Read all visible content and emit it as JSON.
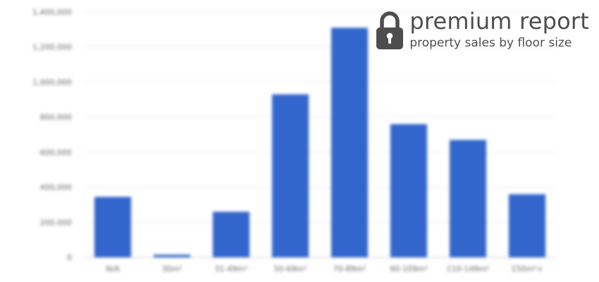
{
  "badge": {
    "icon": "lock-icon",
    "title": "premium report",
    "subtitle": "property sales by floor size",
    "color": "#4d4d4d"
  },
  "chart_data": {
    "type": "bar",
    "categories": [
      "N/A",
      "30m²",
      "31-49m²",
      "50-69m²",
      "70-89m²",
      "90-109m²",
      "110-149m²",
      "150m²+"
    ],
    "values": [
      345000,
      15000,
      260000,
      930000,
      1310000,
      760000,
      670000,
      360000
    ],
    "yticks": [
      0,
      200000,
      400000,
      600000,
      800000,
      1000000,
      1200000,
      1400000
    ],
    "ylim": [
      0,
      1400000
    ],
    "grid": true,
    "bar_color": "#3366cc",
    "gridline_color": "#ebebeb",
    "legend": "none"
  }
}
